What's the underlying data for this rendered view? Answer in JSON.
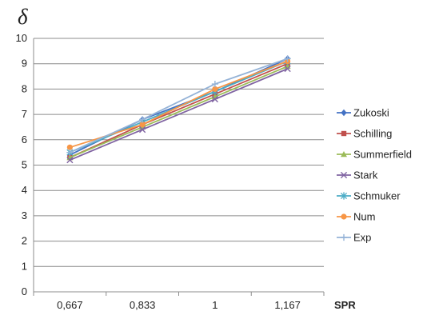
{
  "chart_data": {
    "type": "line",
    "title": "",
    "ylabel": "δ",
    "xlabel": "SPR",
    "categories": [
      "0,667",
      "0,833",
      "1",
      "1,167"
    ],
    "ylim": [
      0,
      10
    ],
    "yticks": [
      0,
      1,
      2,
      3,
      4,
      5,
      6,
      7,
      8,
      9,
      10
    ],
    "grid": "horizontal",
    "legend_position": "right",
    "series": [
      {
        "name": "Zukoski",
        "values": [
          5.4,
          6.8,
          7.9,
          9.2
        ],
        "color": "#4472c4",
        "marker": "diamond"
      },
      {
        "name": "Schilling",
        "values": [
          5.3,
          6.6,
          7.8,
          9.0
        ],
        "color": "#c0504d",
        "marker": "square"
      },
      {
        "name": "Summerfield",
        "values": [
          5.3,
          6.5,
          7.7,
          8.9
        ],
        "color": "#9bbb59",
        "marker": "triangle"
      },
      {
        "name": "Stark",
        "values": [
          5.2,
          6.4,
          7.6,
          8.8
        ],
        "color": "#8064a2",
        "marker": "x"
      },
      {
        "name": "Schmuker",
        "values": [
          5.5,
          6.7,
          7.9,
          9.1
        ],
        "color": "#4bacc6",
        "marker": "star"
      },
      {
        "name": "Num",
        "values": [
          5.7,
          6.6,
          8.0,
          9.1
        ],
        "color": "#f79646",
        "marker": "circle"
      },
      {
        "name": "Exp",
        "values": [
          5.5,
          6.8,
          8.2,
          9.2
        ],
        "color": "#95b3d7",
        "marker": "plus"
      }
    ]
  }
}
